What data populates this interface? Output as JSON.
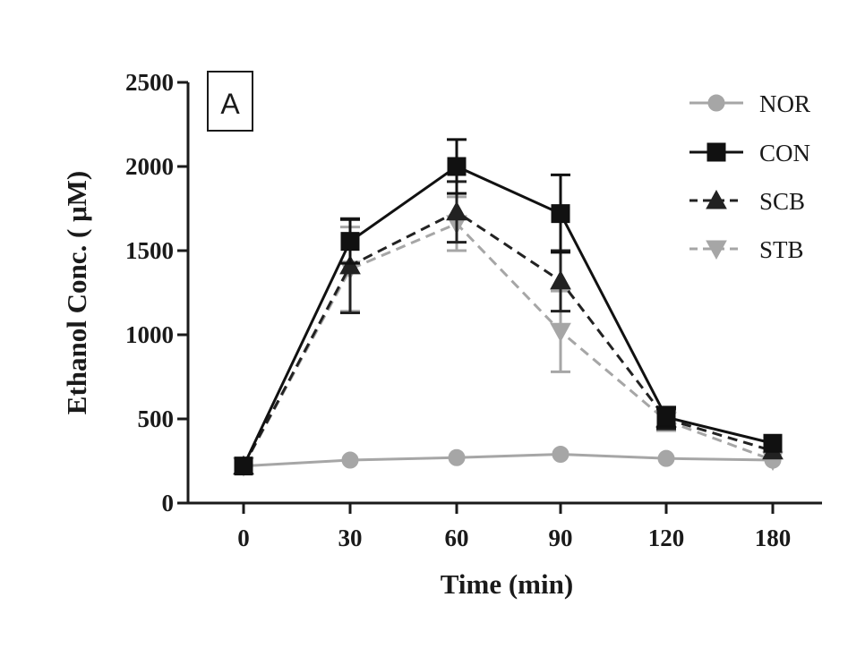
{
  "chart_data": {
    "type": "line",
    "panel_label": "A",
    "xlabel": "Time (min)",
    "ylabel": "Ethanol Conc. ( μM)",
    "ylim": [
      0,
      2500
    ],
    "yticks": [
      0,
      500,
      1000,
      1500,
      2000,
      2500
    ],
    "ytick_labels": [
      "0",
      "500",
      "1000",
      "1500",
      "2000",
      "2500"
    ],
    "categories": [
      "0",
      "30",
      "60",
      "90",
      "120",
      "180"
    ],
    "legend_position": "top-right",
    "grid": false,
    "series": [
      {
        "name": "NOR",
        "color": "#a6a6a6",
        "line": "solid",
        "marker": "circle",
        "values": [
          220,
          255,
          270,
          290,
          265,
          255
        ],
        "errors": [
          0,
          0,
          0,
          0,
          0,
          0
        ]
      },
      {
        "name": "CON",
        "color": "#111111",
        "line": "solid",
        "marker": "square",
        "values": [
          220,
          1555,
          2000,
          1720,
          510,
          355
        ],
        "errors": [
          0,
          130,
          160,
          230,
          60,
          0
        ]
      },
      {
        "name": "SCB",
        "color": "#222222",
        "line": "dashed",
        "marker": "triangle-up",
        "values": [
          220,
          1410,
          1730,
          1320,
          500,
          310
        ],
        "errors": [
          0,
          280,
          180,
          180,
          60,
          0
        ]
      },
      {
        "name": "STB",
        "color": "#a6a6a6",
        "line": "dashed",
        "marker": "triangle-down",
        "values": [
          220,
          1390,
          1660,
          1020,
          490,
          255
        ],
        "errors": [
          0,
          250,
          160,
          240,
          60,
          0
        ]
      }
    ]
  }
}
